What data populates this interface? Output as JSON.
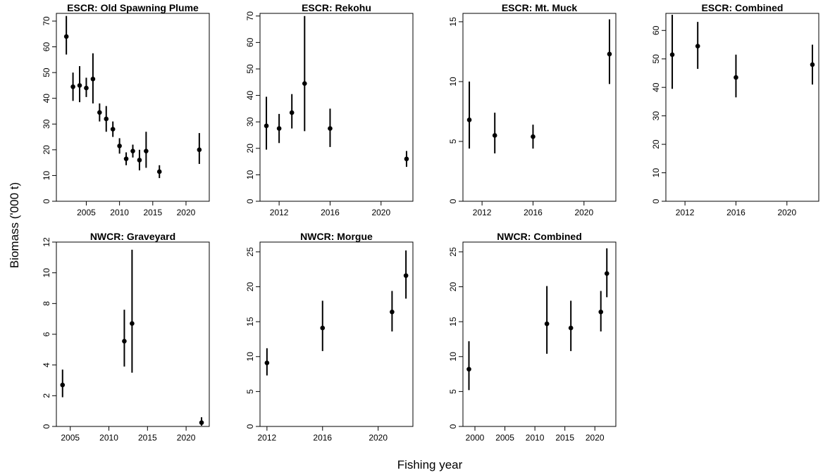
{
  "figure": {
    "xlabel": "Fishing year",
    "ylabel": "Biomass ('000 t)"
  },
  "chart_data": [
    {
      "type": "scatter",
      "title": "ESCR: Old Spawning Plume",
      "xlim": [
        2000.5,
        2023.5
      ],
      "ylim": [
        0,
        73
      ],
      "xticks": [
        2005,
        2010,
        2015,
        2020
      ],
      "yticks": [
        0,
        10,
        20,
        30,
        40,
        50,
        60,
        70
      ],
      "points": [
        {
          "x": 2002,
          "y": 64,
          "lo": 57,
          "hi": 72
        },
        {
          "x": 2003,
          "y": 44.5,
          "lo": 39,
          "hi": 50
        },
        {
          "x": 2004,
          "y": 45,
          "lo": 38.5,
          "hi": 52.5
        },
        {
          "x": 2005,
          "y": 44,
          "lo": 40.5,
          "hi": 48
        },
        {
          "x": 2006,
          "y": 47.5,
          "lo": 38,
          "hi": 57.5
        },
        {
          "x": 2007,
          "y": 34.5,
          "lo": 31,
          "hi": 38
        },
        {
          "x": 2008,
          "y": 32,
          "lo": 27,
          "hi": 37
        },
        {
          "x": 2009,
          "y": 28,
          "lo": 25,
          "hi": 31
        },
        {
          "x": 2010,
          "y": 21.5,
          "lo": 18.5,
          "hi": 24.5
        },
        {
          "x": 2011,
          "y": 16.5,
          "lo": 14,
          "hi": 19
        },
        {
          "x": 2012,
          "y": 19.5,
          "lo": 17,
          "hi": 22
        },
        {
          "x": 2013,
          "y": 16,
          "lo": 12,
          "hi": 20
        },
        {
          "x": 2014,
          "y": 19.5,
          "lo": 13,
          "hi": 27
        },
        {
          "x": 2016,
          "y": 11.5,
          "lo": 9,
          "hi": 14
        },
        {
          "x": 2022,
          "y": 20,
          "lo": 14.5,
          "hi": 26.5
        }
      ]
    },
    {
      "type": "scatter",
      "title": "ESCR: Rekohu",
      "xlim": [
        2010.5,
        2022.5
      ],
      "ylim": [
        0,
        71
      ],
      "xticks": [
        2012,
        2016,
        2020
      ],
      "yticks": [
        0,
        10,
        20,
        30,
        40,
        50,
        60,
        70
      ],
      "points": [
        {
          "x": 2011,
          "y": 28.5,
          "lo": 19.5,
          "hi": 39.5
        },
        {
          "x": 2012,
          "y": 27.5,
          "lo": 22,
          "hi": 33
        },
        {
          "x": 2013,
          "y": 33.5,
          "lo": 27.5,
          "hi": 40.5
        },
        {
          "x": 2014,
          "y": 44.5,
          "lo": 26.5,
          "hi": 70
        },
        {
          "x": 2016,
          "y": 27.5,
          "lo": 20.5,
          "hi": 35
        },
        {
          "x": 2022,
          "y": 16,
          "lo": 13,
          "hi": 19
        }
      ]
    },
    {
      "type": "scatter",
      "title": "ESCR: Mt. Muck",
      "xlim": [
        2010.5,
        2022.5
      ],
      "ylim": [
        0,
        15.7
      ],
      "xticks": [
        2012,
        2016,
        2020
      ],
      "yticks": [
        0,
        5,
        10,
        15
      ],
      "points": [
        {
          "x": 2011,
          "y": 6.8,
          "lo": 4.4,
          "hi": 10
        },
        {
          "x": 2013,
          "y": 5.5,
          "lo": 4,
          "hi": 7.4
        },
        {
          "x": 2016,
          "y": 5.4,
          "lo": 4.4,
          "hi": 6.4
        },
        {
          "x": 2022,
          "y": 12.3,
          "lo": 9.8,
          "hi": 15.2
        }
      ]
    },
    {
      "type": "scatter",
      "title": "ESCR: Combined",
      "xlim": [
        2010.5,
        2022.5
      ],
      "ylim": [
        0,
        66
      ],
      "xticks": [
        2012,
        2016,
        2020
      ],
      "yticks": [
        0,
        10,
        20,
        30,
        40,
        50,
        60
      ],
      "points": [
        {
          "x": 2011,
          "y": 51.5,
          "lo": 39.5,
          "hi": 65.5
        },
        {
          "x": 2013,
          "y": 54.5,
          "lo": 46.5,
          "hi": 63
        },
        {
          "x": 2016,
          "y": 43.5,
          "lo": 36.5,
          "hi": 51.5
        },
        {
          "x": 2022,
          "y": 48,
          "lo": 41,
          "hi": 55
        }
      ]
    },
    {
      "type": "scatter",
      "title": "NWCR: Graveyard",
      "xlim": [
        2003.2,
        2023
      ],
      "ylim": [
        0,
        12
      ],
      "xticks": [
        2005,
        2010,
        2015,
        2020
      ],
      "yticks": [
        0,
        2,
        4,
        6,
        8,
        10,
        12
      ],
      "points": [
        {
          "x": 2004,
          "y": 2.7,
          "lo": 1.9,
          "hi": 3.7
        },
        {
          "x": 2012,
          "y": 5.55,
          "lo": 3.9,
          "hi": 7.6
        },
        {
          "x": 2013,
          "y": 6.7,
          "lo": 3.5,
          "hi": 11.5
        },
        {
          "x": 2022,
          "y": 0.25,
          "lo": 0.05,
          "hi": 0.6
        }
      ]
    },
    {
      "type": "scatter",
      "title": "NWCR: Morgue",
      "xlim": [
        2011.5,
        2022.5
      ],
      "ylim": [
        0,
        26.4
      ],
      "xticks": [
        2012,
        2016,
        2020
      ],
      "yticks": [
        0,
        5,
        10,
        15,
        20,
        25
      ],
      "points": [
        {
          "x": 2012,
          "y": 9.1,
          "lo": 7.3,
          "hi": 11.2
        },
        {
          "x": 2016,
          "y": 14.1,
          "lo": 10.8,
          "hi": 18
        },
        {
          "x": 2021,
          "y": 16.4,
          "lo": 13.6,
          "hi": 19.4
        },
        {
          "x": 2022,
          "y": 21.6,
          "lo": 18.3,
          "hi": 25.2
        }
      ]
    },
    {
      "type": "scatter",
      "title": "NWCR: Combined",
      "xlim": [
        1998,
        2023.5
      ],
      "ylim": [
        0,
        26.4
      ],
      "xticks": [
        2000,
        2005,
        2010,
        2015,
        2020
      ],
      "yticks": [
        0,
        5,
        10,
        15,
        20,
        25
      ],
      "points": [
        {
          "x": 1999,
          "y": 8.2,
          "lo": 5.2,
          "hi": 12.2
        },
        {
          "x": 2012,
          "y": 14.7,
          "lo": 10.4,
          "hi": 20.1
        },
        {
          "x": 2016,
          "y": 14.1,
          "lo": 10.8,
          "hi": 18
        },
        {
          "x": 2021,
          "y": 16.4,
          "lo": 13.6,
          "hi": 19.4
        },
        {
          "x": 2022,
          "y": 21.9,
          "lo": 18.5,
          "hi": 25.5
        }
      ]
    }
  ]
}
